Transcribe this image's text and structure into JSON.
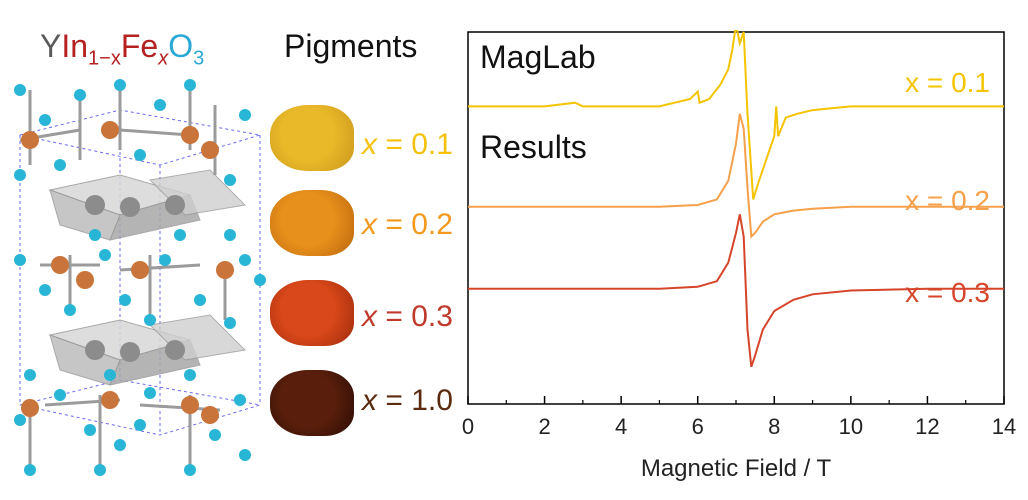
{
  "formula": {
    "y": "Y",
    "in": "In",
    "in_sub": "1−x",
    "fe": "Fe",
    "fe_sub": "x",
    "o": "O",
    "o_sub": "3"
  },
  "pigments": {
    "title": "Pigments",
    "items": [
      {
        "label": "x = 0.1",
        "var": "x",
        "val": "= 0.1",
        "color": "#f4c20d",
        "swatch": "#e9b92a",
        "swatch_dark": "#c9961a"
      },
      {
        "label": "x = 0.2",
        "var": "x",
        "val": "= 0.2",
        "color": "#f39a1e",
        "swatch": "#e8901c",
        "swatch_dark": "#b8650d"
      },
      {
        "label": "x = 0.3",
        "var": "x",
        "val": "= 0.3",
        "color": "#c0392b",
        "swatch": "#d9481a",
        "swatch_dark": "#9e2a0c"
      },
      {
        "label": "x = 1.0",
        "var": "x",
        "val": "= 1.0",
        "color": "#5b2a0f",
        "swatch": "#5a1f0c",
        "swatch_dark": "#2a0c05"
      }
    ]
  },
  "colors": {
    "O": "#29b6d6",
    "Fe": "#c8743a",
    "Y": "#8c8c8c",
    "In_text": "#b52020",
    "Fe_text": "#b52020",
    "O_text": "#29a8d6",
    "Y_text": "#5a5a5a"
  },
  "chart_data": {
    "type": "line",
    "title": "",
    "xlabel": "Magnetic Field / T",
    "ylabel": "",
    "xlim": [
      0,
      14
    ],
    "xticks": [
      0,
      2,
      4,
      6,
      8,
      10,
      12,
      14
    ],
    "annotations": [
      "MagLab",
      "Results"
    ],
    "series": [
      {
        "name": "x = 0.1",
        "color": "#f5c400",
        "baseline": 0.8,
        "points": [
          [
            0,
            0.8
          ],
          [
            1,
            0.8
          ],
          [
            2,
            0.8
          ],
          [
            2.8,
            0.81
          ],
          [
            3,
            0.8
          ],
          [
            4,
            0.8
          ],
          [
            5,
            0.8
          ],
          [
            5.8,
            0.82
          ],
          [
            6,
            0.84
          ],
          [
            6.05,
            0.81
          ],
          [
            6.3,
            0.82
          ],
          [
            6.6,
            0.86
          ],
          [
            6.8,
            0.9
          ],
          [
            6.9,
            0.95
          ],
          [
            7.0,
            1.02
          ],
          [
            7.1,
            0.97
          ],
          [
            7.2,
            1.0
          ],
          [
            7.3,
            0.78
          ],
          [
            7.45,
            0.55
          ],
          [
            7.6,
            0.6
          ],
          [
            7.8,
            0.66
          ],
          [
            8.0,
            0.72
          ],
          [
            8.05,
            0.8
          ],
          [
            8.1,
            0.72
          ],
          [
            8.3,
            0.77
          ],
          [
            8.6,
            0.78
          ],
          [
            9,
            0.79
          ],
          [
            10,
            0.8
          ],
          [
            11,
            0.8
          ],
          [
            12,
            0.8
          ],
          [
            13,
            0.8
          ],
          [
            14,
            0.8
          ]
        ]
      },
      {
        "name": "x = 0.2",
        "color": "#f5a04a",
        "baseline": 0.53,
        "points": [
          [
            0,
            0.53
          ],
          [
            2,
            0.53
          ],
          [
            4,
            0.53
          ],
          [
            5,
            0.53
          ],
          [
            6,
            0.535
          ],
          [
            6.5,
            0.55
          ],
          [
            6.8,
            0.6
          ],
          [
            7.0,
            0.7
          ],
          [
            7.1,
            0.78
          ],
          [
            7.2,
            0.74
          ],
          [
            7.3,
            0.58
          ],
          [
            7.4,
            0.45
          ],
          [
            7.5,
            0.46
          ],
          [
            7.7,
            0.49
          ],
          [
            8,
            0.51
          ],
          [
            8.5,
            0.52
          ],
          [
            9,
            0.525
          ],
          [
            10,
            0.53
          ],
          [
            12,
            0.53
          ],
          [
            14,
            0.53
          ]
        ]
      },
      {
        "name": "x = 0.3",
        "color": "#d6452a",
        "baseline": 0.31,
        "points": [
          [
            0,
            0.31
          ],
          [
            2,
            0.31
          ],
          [
            4,
            0.31
          ],
          [
            5,
            0.31
          ],
          [
            6,
            0.315
          ],
          [
            6.5,
            0.33
          ],
          [
            6.8,
            0.38
          ],
          [
            7.0,
            0.46
          ],
          [
            7.1,
            0.51
          ],
          [
            7.2,
            0.45
          ],
          [
            7.3,
            0.2
          ],
          [
            7.4,
            0.1
          ],
          [
            7.5,
            0.13
          ],
          [
            7.7,
            0.2
          ],
          [
            8,
            0.25
          ],
          [
            8.5,
            0.28
          ],
          [
            9,
            0.295
          ],
          [
            10,
            0.305
          ],
          [
            12,
            0.31
          ],
          [
            14,
            0.31
          ]
        ]
      }
    ]
  }
}
